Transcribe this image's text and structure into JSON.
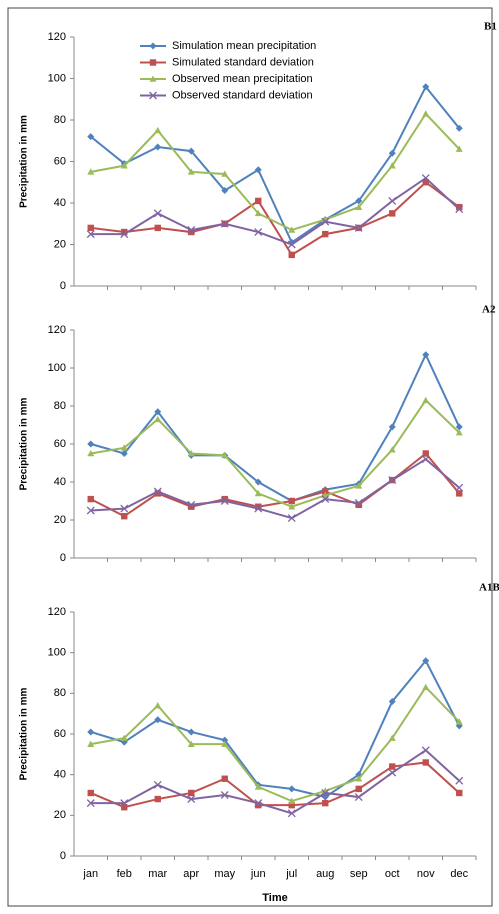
{
  "chart_data": [
    {
      "type": "line",
      "title": "B1",
      "y_label": "Precipitation in mm",
      "categories": [
        null,
        null,
        null,
        null,
        null,
        null,
        null,
        null,
        null,
        null,
        null,
        null
      ],
      "ylim": [
        0,
        120
      ],
      "yticks": [
        0,
        20,
        40,
        60,
        80,
        100,
        120
      ],
      "legend": "top",
      "series": [
        {
          "name": "Simulation mean precipitation",
          "color": "#4f81bd",
          "marker": "diamond",
          "values": [
            72,
            59,
            67,
            65,
            46,
            56,
            21,
            32,
            41,
            64,
            96,
            76
          ]
        },
        {
          "name": "Simulated standard deviation",
          "color": "#c0504d",
          "marker": "square",
          "values": [
            28,
            26,
            28,
            26,
            30,
            41,
            15,
            25,
            28,
            35,
            50,
            38
          ]
        },
        {
          "name": "Observed  mean precipitation",
          "color": "#9bbb59",
          "marker": "triangle",
          "values": [
            55,
            58,
            75,
            55,
            54,
            35,
            27,
            32,
            38,
            58,
            83,
            66
          ]
        },
        {
          "name": "Observed standard deviation",
          "color": "#8064a2",
          "marker": "x",
          "values": [
            25,
            25,
            35,
            27,
            30,
            26,
            20,
            31,
            28,
            41,
            52,
            37
          ]
        }
      ]
    },
    {
      "type": "line",
      "title": "A2",
      "y_label": "Precipitation in mm",
      "categories": [
        null,
        null,
        null,
        null,
        null,
        null,
        null,
        null,
        null,
        null,
        null,
        null
      ],
      "ylim": [
        0,
        120
      ],
      "yticks": [
        0,
        20,
        40,
        60,
        80,
        100,
        120
      ],
      "series": [
        {
          "color": "#4f81bd",
          "marker": "diamond",
          "values": [
            60,
            55,
            77,
            54,
            54,
            40,
            30,
            36,
            39,
            69,
            107,
            69
          ]
        },
        {
          "color": "#c0504d",
          "marker": "square",
          "values": [
            31,
            22,
            34,
            27,
            31,
            27,
            30,
            35,
            28,
            41,
            55,
            34
          ]
        },
        {
          "color": "#9bbb59",
          "marker": "triangle",
          "values": [
            55,
            58,
            73,
            55,
            54,
            34,
            27,
            33,
            38,
            57,
            83,
            66
          ]
        },
        {
          "color": "#8064a2",
          "marker": "x",
          "values": [
            25,
            26,
            35,
            28,
            30,
            26,
            21,
            31,
            29,
            41,
            52,
            37
          ]
        }
      ]
    },
    {
      "type": "line",
      "title": "A1B",
      "y_label": "Precipitation in mm",
      "x_label": "Time",
      "categories": [
        "jan",
        "feb",
        "mar",
        "apr",
        "may",
        "jun",
        "jul",
        "aug",
        "sep",
        "oct",
        "nov",
        "dec"
      ],
      "ylim": [
        0,
        120
      ],
      "yticks": [
        0,
        20,
        40,
        60,
        80,
        100,
        120
      ],
      "series": [
        {
          "color": "#4f81bd",
          "marker": "diamond",
          "values": [
            61,
            56,
            67,
            61,
            57,
            35,
            33,
            29,
            40,
            76,
            96,
            64
          ]
        },
        {
          "color": "#c0504d",
          "marker": "square",
          "values": [
            31,
            24,
            28,
            31,
            38,
            25,
            25,
            26,
            33,
            44,
            46,
            31
          ]
        },
        {
          "color": "#9bbb59",
          "marker": "triangle",
          "values": [
            55,
            58,
            74,
            55,
            55,
            34,
            27,
            32,
            38,
            58,
            83,
            66
          ]
        },
        {
          "color": "#8064a2",
          "marker": "x",
          "values": [
            26,
            26,
            35,
            28,
            30,
            26,
            21,
            31,
            29,
            41,
            52,
            37
          ]
        }
      ]
    }
  ]
}
